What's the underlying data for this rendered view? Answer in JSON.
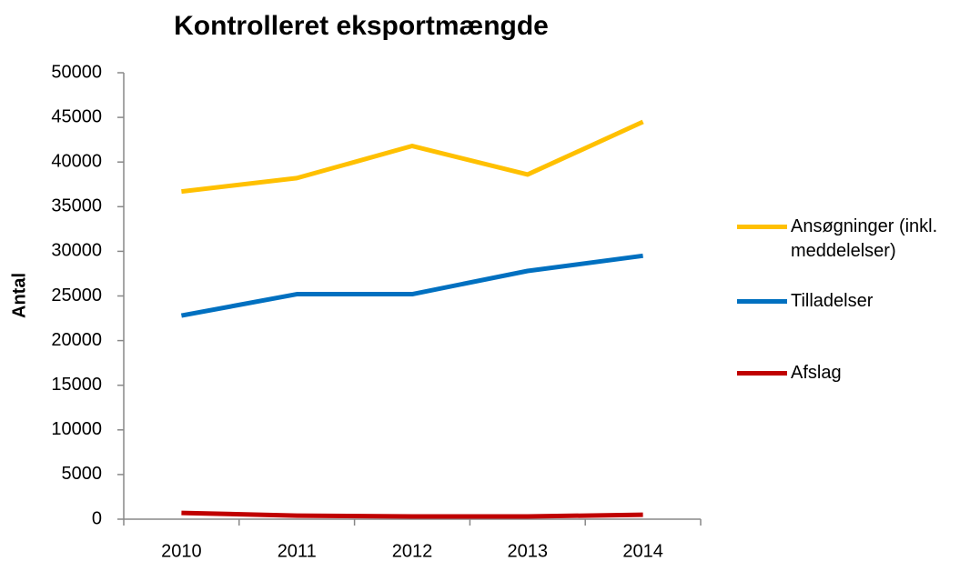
{
  "chart_data": {
    "type": "line",
    "title": "Kontrolleret eksportmængde",
    "y_label": "Antal",
    "categories": [
      "2010",
      "2011",
      "2012",
      "2013",
      "2014"
    ],
    "series": [
      {
        "name": "Ansøgninger (inkl. meddelelser)",
        "color": "#ffc000",
        "values": [
          36700,
          38200,
          41800,
          38600,
          44500
        ]
      },
      {
        "name": "Tilladelser",
        "color": "#0070c0",
        "values": [
          22800,
          25200,
          25200,
          27800,
          29500
        ]
      },
      {
        "name": "Afslag",
        "color": "#c00000",
        "values": [
          700,
          400,
          300,
          300,
          500
        ]
      }
    ],
    "ylim": [
      0,
      50000
    ],
    "yticks": [
      0,
      5000,
      10000,
      15000,
      20000,
      25000,
      30000,
      35000,
      40000,
      45000,
      50000
    ],
    "grid": false,
    "legend": "right"
  }
}
